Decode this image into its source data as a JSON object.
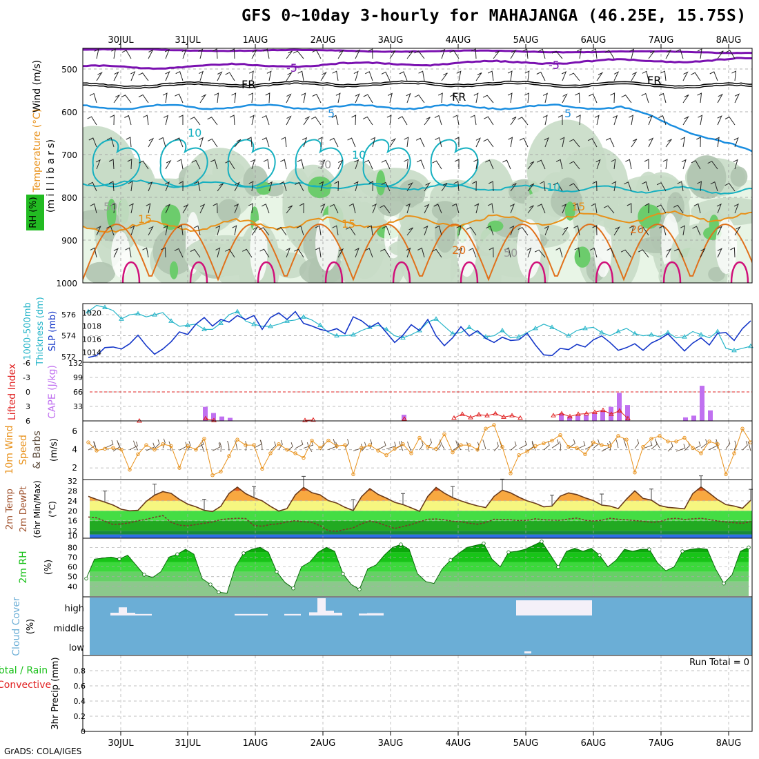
{
  "title": "GFS 0~10day 3-hourly for MAHAJANGA (46.25E, 15.75S)",
  "footer": "GrADS: COLA/IGES",
  "dates": [
    "30JUL",
    "31JUL",
    "1AUG",
    "2AUG",
    "3AUG",
    "4AUG",
    "5AUG",
    "6AUG",
    "7AUG",
    "8AUG"
  ],
  "colors": {
    "purple": "#7a10b0",
    "blue": "#1a8ee0",
    "cyan": "#16b0c0",
    "orange": "#e89018",
    "magenta": "#d0107a",
    "slp": "#1436c8",
    "thick": "#24b4c8",
    "cape": "#c070f0",
    "li": "#e02020",
    "wind": "#e89018",
    "rh": "#18c018",
    "cloud": "#6baed6"
  },
  "panels": {
    "upper": {
      "ylabels": [
        "Wind (m/s)",
        "Temperature (°C)",
        "RH (%)",
        "(m i l l i b a r s)"
      ],
      "yticks": [
        "500",
        "600",
        "700",
        "800",
        "900",
        "1000"
      ],
      "contour_labels": {
        "m5": "-5",
        "fr": "FR",
        "p5": "5",
        "p10": "10",
        "p15": "15",
        "p20": "20",
        "rh30": "30",
        "rh50": "50"
      }
    },
    "slp": {
      "left_label": "1000-500mb\nThickness (dm)",
      "right_label": "SLP (mb)",
      "left_ticks": [
        "572",
        "574",
        "576"
      ],
      "right_ticks": [
        "1014",
        "1016",
        "1018",
        "1020"
      ]
    },
    "cape": {
      "left_label": "Lifted Index",
      "right_label": "CAPE (J/kg)",
      "left_ticks": [
        "6",
        "3",
        "0",
        "-3",
        "-6"
      ],
      "right_ticks": [
        "33",
        "66",
        "99",
        "132"
      ]
    },
    "wind10": {
      "left_label": "10m Wind",
      "mid_label": "Speed",
      "right_label": "& Barbs",
      "unit": "(m/s)",
      "ticks": [
        "2",
        "4",
        "6"
      ]
    },
    "temp": {
      "labels": [
        "2m Temp",
        "2m DewPt",
        "(6hr Min/Max)",
        "(°C)"
      ],
      "ticks": [
        "10",
        "12",
        "16",
        "20",
        "24",
        "28",
        "32"
      ]
    },
    "rh2m": {
      "labels": [
        "2m RH",
        "(%)"
      ],
      "ticks": [
        "40",
        "50",
        "60",
        "70",
        "80"
      ]
    },
    "cloud": {
      "labels": [
        "Cloud Cover",
        "(%)"
      ],
      "levels": [
        "high",
        "middle",
        "low"
      ]
    },
    "precip": {
      "labels": [
        "Total / Rain",
        "Convective",
        "3hr Precip (mm)"
      ],
      "ticks": [
        "0",
        "0.2",
        "0.4",
        "0.6",
        "0.8"
      ],
      "run_total": "Run Total = 0"
    }
  },
  "chart_data": [
    {
      "type": "line",
      "name": "slp",
      "ylim": [
        1013,
        1021
      ],
      "values": [
        1013.2,
        1013.5,
        1014.7,
        1014.8,
        1014.5,
        1015.3,
        1016.6,
        1015.0,
        1013.7,
        1014.5,
        1015.6,
        1017.1,
        1016.7,
        1018.3,
        1019.3,
        1018.0,
        1019.0,
        1018.6,
        1019.6,
        1019.0,
        1019.6,
        1017.5,
        1019.3,
        1020.0,
        1019.0,
        1020.2,
        1018.4,
        1018.0,
        1017.5,
        1017.2,
        1017.6,
        1016.8,
        1019.4,
        1018.8,
        1017.8,
        1018.5,
        1017.0,
        1015.5,
        1016.6,
        1018.2,
        1017.3,
        1019.0,
        1016.5,
        1015.0,
        1016.2,
        1017.9,
        1016.5,
        1017.3,
        1016.1,
        1015.5,
        1016.3,
        1015.8,
        1015.9,
        1016.9,
        1015.1,
        1013.6,
        1013.5,
        1014.6,
        1014.4,
        1015.2,
        1014.8,
        1015.9,
        1016.5,
        1015.5,
        1014.3,
        1014.7,
        1015.3,
        1014.3,
        1015.4,
        1016.0,
        1016.8,
        1015.5,
        1014.2,
        1015.4,
        1016.2,
        1015.1,
        1016.9,
        1017.0,
        1015.8,
        1017.6,
        1018.8
      ]
    },
    {
      "type": "line",
      "name": "thickness",
      "ylim": [
        571.8,
        576.8
      ],
      "values": [
        576.3,
        576.9,
        576.7,
        576.4,
        575.6,
        576.0,
        576.1,
        575.8,
        576.0,
        576.2,
        575.4,
        574.9,
        575.0,
        575.1,
        574.6,
        574.6,
        575.2,
        576.0,
        576.3,
        575.4,
        575.1,
        574.9,
        574.9,
        575.1,
        575.4,
        575.5,
        575.8,
        575.5,
        575.0,
        574.3,
        574.0,
        574.0,
        574.1,
        574.5,
        574.8,
        575.0,
        574.6,
        574.0,
        573.8,
        574.1,
        574.5,
        575.3,
        575.6,
        574.9,
        574.2,
        574.3,
        574.8,
        574.3,
        573.9,
        574.0,
        574.5,
        573.8,
        573.9,
        574.3,
        574.7,
        575.1,
        574.8,
        574.4,
        574.0,
        574.5,
        574.7,
        574.8,
        574.3,
        574.0,
        574.4,
        574.7,
        574.2,
        574.0,
        574.1,
        573.9,
        574.3,
        573.8,
        573.9,
        574.4,
        574.1,
        573.8,
        574.4,
        572.8,
        572.6,
        572.8,
        573.0
      ]
    },
    {
      "type": "bar",
      "name": "cape",
      "ylim": [
        0,
        132
      ],
      "bars": [
        [
          14,
          32
        ],
        [
          15,
          18
        ],
        [
          16,
          10
        ],
        [
          17,
          7
        ],
        [
          38,
          14
        ],
        [
          57,
          17
        ],
        [
          58,
          10
        ],
        [
          59,
          13
        ],
        [
          60,
          14
        ],
        [
          61,
          18
        ],
        [
          62,
          24
        ],
        [
          63,
          32
        ],
        [
          64,
          64
        ],
        [
          65,
          36
        ],
        [
          72,
          8
        ],
        [
          73,
          12
        ],
        [
          74,
          80
        ],
        [
          75,
          24
        ],
        [
          82,
          58
        ],
        [
          83,
          122
        ],
        [
          84,
          44
        ]
      ]
    },
    {
      "type": "line",
      "name": "li",
      "ylim": [
        -6,
        6
      ],
      "points": [
        [
          6,
          6
        ],
        [
          14,
          5.5
        ],
        [
          15,
          5.9
        ],
        [
          26,
          5.9
        ],
        [
          27,
          5.8
        ],
        [
          38,
          5.6
        ],
        [
          44,
          5.4
        ],
        [
          45,
          4.6
        ],
        [
          46,
          5.3
        ],
        [
          47,
          4.7
        ],
        [
          48,
          4.9
        ],
        [
          49,
          4.5
        ],
        [
          50,
          5.2
        ],
        [
          51,
          4.9
        ],
        [
          52,
          5.4
        ],
        [
          56,
          4.9
        ],
        [
          57,
          4.5
        ],
        [
          58,
          5.1
        ],
        [
          59,
          4.6
        ],
        [
          60,
          4.5
        ],
        [
          61,
          4.2
        ],
        [
          62,
          3.8
        ],
        [
          63,
          4.6
        ],
        [
          64,
          3.9
        ],
        [
          65,
          5.5
        ]
      ]
    },
    {
      "type": "line",
      "name": "wind10m",
      "ylim": [
        0.8,
        7
      ],
      "values": [
        4.8,
        3.9,
        4.1,
        4.2,
        4.0,
        1.8,
        3.5,
        4.5,
        4.0,
        4.6,
        4.4,
        2.0,
        4.4,
        4.0,
        5.2,
        1.2,
        1.6,
        3.3,
        5.1,
        4.5,
        4.5,
        1.9,
        3.6,
        4.6,
        4.0,
        3.6,
        3.1,
        5.0,
        4.2,
        5.0,
        4.4,
        4.5,
        1.3,
        4.2,
        4.5,
        3.9,
        3.4,
        4.1,
        4.6,
        3.6,
        5.3,
        4.3,
        4.1,
        5.7,
        3.7,
        4.5,
        4.5,
        4.0,
        6.3,
        6.7,
        4.3,
        1.4,
        3.4,
        3.8,
        4.4,
        4.7,
        5.0,
        5.6,
        4.3,
        4.2,
        3.5,
        4.8,
        4.5,
        4.4,
        5.5,
        5.1,
        1.5,
        4.3,
        5.2,
        5.5,
        4.9,
        4.9,
        5.3,
        4.2,
        3.6,
        4.9,
        4.6,
        1.3,
        3.6,
        6.3,
        4.8
      ]
    },
    {
      "type": "area",
      "name": "temp2m",
      "ylim": [
        9,
        32
      ],
      "values": [
        25.8,
        24.6,
        23.5,
        22.3,
        20.6,
        20.0,
        20.2,
        23.8,
        26.3,
        27.7,
        27.0,
        24.6,
        22.7,
        21.6,
        20.2,
        19.7,
        21.8,
        27.0,
        29.5,
        26.9,
        25.3,
        24.0,
        21.8,
        19.9,
        20.9,
        26.4,
        29.4,
        27.3,
        26.4,
        24.1,
        23.1,
        21.4,
        20.1,
        25.7,
        28.9,
        26.6,
        25.1,
        23.4,
        22.5,
        21.2,
        19.8,
        25.8,
        29.4,
        27.1,
        25.3,
        24.0,
        22.9,
        22.0,
        21.3,
        25.8,
        28.3,
        27.2,
        25.5,
        24.0,
        23.0,
        21.6,
        21.9,
        25.9,
        27.2,
        26.5,
        25.2,
        24.1,
        22.3,
        21.9,
        20.9,
        24.7,
        28.0,
        25.0,
        24.3,
        22.1,
        21.4,
        21.1,
        20.8,
        26.9,
        29.6,
        27.1,
        24.5,
        22.5,
        21.9,
        21.0,
        24.2
      ]
    },
    {
      "type": "line",
      "name": "dewpt2m",
      "ylim": [
        9,
        32
      ],
      "values": [
        17.5,
        17.2,
        15.8,
        14.5,
        14.7,
        15.2,
        16.0,
        16.6,
        17.4,
        18.1,
        15.4,
        14.2,
        14.0,
        14.5,
        15.0,
        15.5,
        16.5,
        16.8,
        17.0,
        16.9,
        14.1,
        13.8,
        14.5,
        14.8,
        15.5,
        16.0,
        15.6,
        15.4,
        14.0,
        12.0,
        11.8,
        12.5,
        13.2,
        14.8,
        15.9,
        15.2,
        14.0,
        12.9,
        13.7,
        14.5,
        15.6,
        16.6,
        16.7,
        16.4,
        15.8,
        15.6,
        15.0,
        14.6,
        15.3,
        16.6,
        16.5,
        16.4,
        16.1,
        16.2,
        16.8,
        16.4,
        16.3,
        16.2,
        16.7,
        17.1,
        16.2,
        15.9,
        16.2,
        17.0,
        16.6,
        16.4,
        16.1,
        15.8,
        15.4,
        15.6,
        16.7,
        17.0,
        16.5,
        16.8,
        17.0,
        16.5,
        15.9,
        15.5,
        15.2,
        15.0,
        15.6
      ]
    },
    {
      "type": "area",
      "name": "rh2m",
      "ylim": [
        30,
        88
      ],
      "values": [
        48,
        68,
        69,
        70,
        68,
        72,
        62,
        52,
        49,
        55,
        70,
        73,
        78,
        73,
        48,
        42,
        34,
        33,
        60,
        74,
        78,
        80,
        75,
        55,
        44,
        38,
        60,
        65,
        75,
        80,
        76,
        53,
        42,
        37,
        58,
        62,
        72,
        80,
        83,
        78,
        53,
        45,
        43,
        58,
        67,
        74,
        80,
        82,
        84,
        68,
        60,
        75,
        76,
        78,
        82,
        86,
        73,
        60,
        76,
        79,
        76,
        79,
        72,
        60,
        67,
        78,
        76,
        78,
        78,
        64,
        56,
        60,
        76,
        78,
        79,
        78,
        58,
        43,
        52,
        76,
        80
      ]
    },
    {
      "type": "area",
      "name": "cloud_high",
      "ylim": [
        0,
        100
      ],
      "values": [
        0,
        0,
        0,
        5,
        18,
        5,
        2,
        2,
        0,
        0,
        0,
        0,
        0,
        0,
        0,
        0,
        0,
        0,
        2,
        2,
        2,
        2,
        0,
        0,
        2,
        2,
        0,
        6,
        40,
        10,
        5,
        0,
        0,
        3,
        4,
        4,
        0,
        0,
        0,
        0,
        0,
        0,
        0,
        0,
        0,
        0,
        0,
        0,
        0,
        0,
        0,
        0,
        0,
        0,
        0,
        0,
        0,
        0,
        0,
        0,
        0,
        0,
        0,
        0,
        0,
        0,
        0,
        0,
        0,
        0,
        0,
        0,
        0,
        0,
        0,
        0,
        0,
        0,
        0,
        0,
        0
      ]
    },
    {
      "type": "line",
      "name": "precip",
      "ylim": [
        0,
        1
      ],
      "values": [
        0
      ]
    }
  ]
}
